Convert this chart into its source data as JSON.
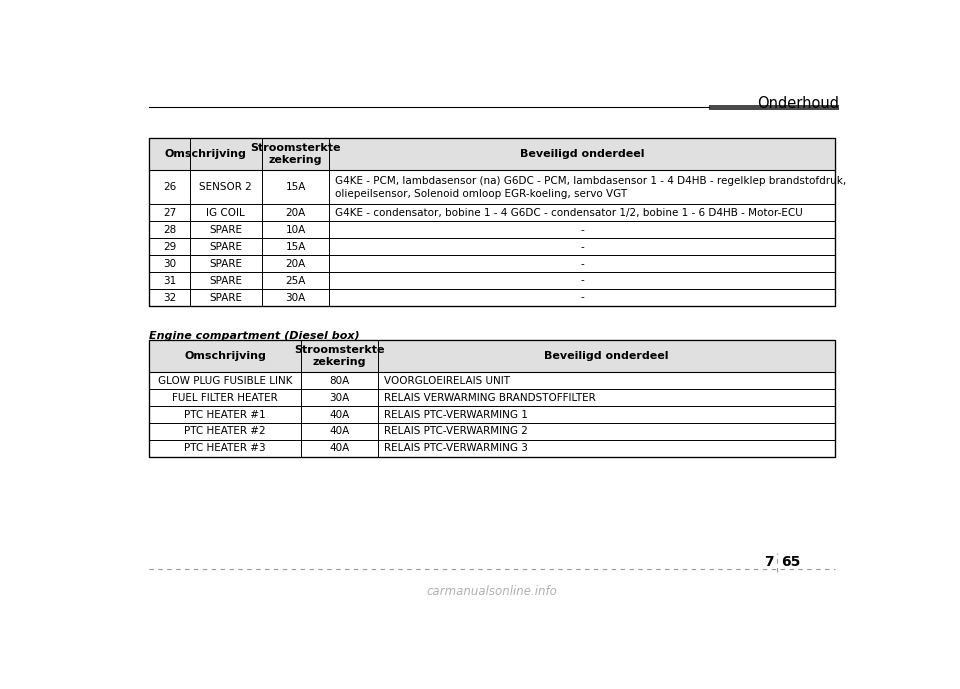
{
  "page_title": "Onderhoud",
  "page_num_left": "7",
  "page_num_right": "65",
  "watermark": "carmanualsonline.info",
  "header_bar_color": "#4a4a4a",
  "table1_headers": [
    "Omschrijving",
    "Stroomsterkte\nzekering",
    "Beveiligd onderdeel"
  ],
  "table1_rows": [
    [
      "26",
      "SENSOR 2",
      "15A",
      "G4KE - PCM, lambdasensor (na) G6DC - PCM, lambdasensor 1 - 4 D4HB - regelklep brandstofdruk,\noliepeilsensor, Solenoid omloop EGR-koeling, servo VGT"
    ],
    [
      "27",
      "IG COIL",
      "20A",
      "G4KE - condensator, bobine 1 - 4 G6DC - condensator 1/2, bobine 1 - 6 D4HB - Motor-ECU"
    ],
    [
      "28",
      "SPARE",
      "10A",
      "-"
    ],
    [
      "29",
      "SPARE",
      "15A",
      "-"
    ],
    [
      "30",
      "SPARE",
      "20A",
      "-"
    ],
    [
      "31",
      "SPARE",
      "25A",
      "-"
    ],
    [
      "32",
      "SPARE",
      "30A",
      "-"
    ]
  ],
  "table2_title": "Engine compartment (Diesel box)",
  "table2_headers": [
    "Omschrijving",
    "Stroomsterkte\nzekering",
    "Beveiligd onderdeel"
  ],
  "table2_rows": [
    [
      "GLOW PLUG FUSIBLE LINK",
      "80A",
      "VOORGLOEIRELAIS UNIT"
    ],
    [
      "FUEL FILTER HEATER",
      "30A",
      "RELAIS VERWARMING BRANDSTOFFILTER"
    ],
    [
      "PTC HEATER #1",
      "40A",
      "RELAIS PTC-VERWARMING 1"
    ],
    [
      "PTC HEATER #2",
      "40A",
      "RELAIS PTC-VERWARMING 2"
    ],
    [
      "PTC HEATER #3",
      "40A",
      "RELAIS PTC-VERWARMING 3"
    ]
  ],
  "bg_color": "#ffffff",
  "table_border_color": "#000000",
  "header_bg_color": "#e0e0e0",
  "text_color": "#000000",
  "dashed_line_color": "#999999",
  "font_size_title": 10.5,
  "font_size_header": 8.0,
  "font_size_body": 7.5,
  "font_size_page": 10,
  "font_size_watermark": 8.5,
  "font_size_section": 8.0
}
